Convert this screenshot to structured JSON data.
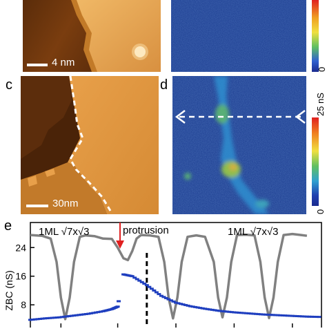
{
  "panels": {
    "a": {
      "scale_bar": "4 nm"
    },
    "c": {
      "letter": "c",
      "scale_bar": "30nm"
    },
    "d": {
      "letter": "d"
    },
    "e": {
      "letter": "e"
    }
  },
  "colorbars": {
    "top": {
      "min_label": "0"
    },
    "d": {
      "max_label": "25 nS",
      "min_label": "0"
    }
  },
  "colors": {
    "topo_dark": "#3a1a05",
    "topo_mid": "#b8681c",
    "topo_light": "#f0b866",
    "map_bg": "#1a3b8f",
    "map_high": "#40c060",
    "trace_gray": "#808080",
    "trace_blue": "#1f3fbf",
    "arrow_red": "#e02020"
  },
  "chart_data": {
    "type": "line",
    "xlabel": "",
    "ylabel": "ZBC (nS)",
    "yticks": [
      8,
      16,
      24
    ],
    "ylim": [
      3,
      31
    ],
    "xlim": [
      0,
      100
    ],
    "annotations": [
      "1ML √7x√3",
      "protrusion",
      "1ML √7x√3"
    ],
    "divider_x": 40,
    "series": [
      {
        "x": [
          0,
          4,
          7,
          9,
          10.5,
          12,
          13.5,
          15,
          17,
          19,
          22,
          25,
          28,
          30,
          32,
          33.5,
          35,
          36.5,
          38,
          41,
          44,
          46,
          47.5,
          49,
          50.5,
          52,
          54,
          57,
          60,
          63,
          64.5,
          66,
          67.5,
          69,
          71,
          74,
          77,
          79,
          80.5,
          82,
          83.5,
          85,
          87,
          90,
          93,
          95
        ],
        "y": [
          27.5,
          27.3,
          26.5,
          20,
          10,
          4,
          10,
          20,
          27,
          27.4,
          27.2,
          26.5,
          26.4,
          24,
          21,
          20.5,
          23,
          26.5,
          27.5,
          27.4,
          27,
          20,
          10,
          4.2,
          10,
          20,
          27,
          27.4,
          27,
          20,
          10,
          4.5,
          10,
          20,
          27.5,
          27.6,
          27.4,
          20,
          10,
          4.3,
          10,
          20,
          27.5,
          27.8,
          27.5,
          27.3
        ]
      },
      {
        "x": [
          0,
          5,
          10,
          15,
          20,
          25,
          28,
          30,
          32,
          35,
          40,
          45,
          50,
          55,
          60,
          65,
          70,
          75,
          80,
          85,
          90,
          95,
          100
        ],
        "y": [
          3.8,
          4.2,
          4.5,
          5,
          5.5,
          6.2,
          6.8,
          7.5,
          16.5,
          16,
          13.5,
          10.5,
          8.6,
          7.6,
          6.9,
          6.3,
          5.9,
          5.6,
          5.3,
          5.1,
          4.9,
          4.7,
          4.6
        ]
      }
    ]
  }
}
